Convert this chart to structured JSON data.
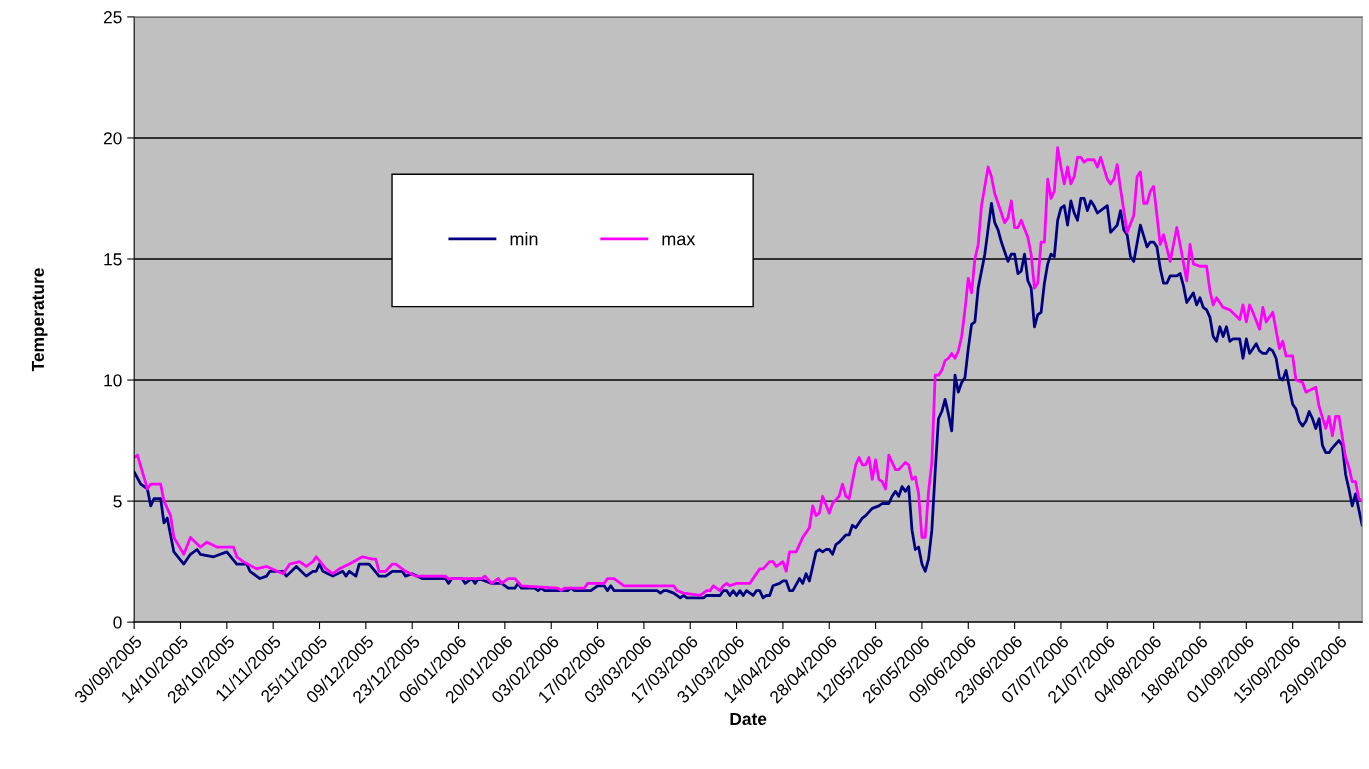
{
  "chart_data": {
    "type": "line",
    "xlabel": "Date",
    "ylabel": "Temperature",
    "xlim": [
      "2005-09-30",
      "2006-10-06"
    ],
    "ylim": [
      0,
      25
    ],
    "yticks": [
      0,
      5,
      10,
      15,
      20,
      25
    ],
    "xticks": [
      {
        "value": "2005-09-30",
        "label": "30/09/2005"
      },
      {
        "value": "2005-10-14",
        "label": "14/10/2005"
      },
      {
        "value": "2005-10-28",
        "label": "28/10/2005"
      },
      {
        "value": "2005-11-11",
        "label": "11/11/2005"
      },
      {
        "value": "2005-11-25",
        "label": "25/11/2005"
      },
      {
        "value": "2005-12-09",
        "label": "09/12/2005"
      },
      {
        "value": "2005-12-23",
        "label": "23/12/2005"
      },
      {
        "value": "2006-01-06",
        "label": "06/01/2006"
      },
      {
        "value": "2006-01-20",
        "label": "20/01/2006"
      },
      {
        "value": "2006-02-03",
        "label": "03/02/2006"
      },
      {
        "value": "2006-02-17",
        "label": "17/02/2006"
      },
      {
        "value": "2006-03-03",
        "label": "03/03/2006"
      },
      {
        "value": "2006-03-17",
        "label": "17/03/2006"
      },
      {
        "value": "2006-03-31",
        "label": "31/03/2006"
      },
      {
        "value": "2006-04-14",
        "label": "14/04/2006"
      },
      {
        "value": "2006-04-28",
        "label": "28/04/2006"
      },
      {
        "value": "2006-05-12",
        "label": "12/05/2006"
      },
      {
        "value": "2006-05-26",
        "label": "26/05/2006"
      },
      {
        "value": "2006-06-09",
        "label": "09/06/2006"
      },
      {
        "value": "2006-06-23",
        "label": "23/06/2006"
      },
      {
        "value": "2006-07-07",
        "label": "07/07/2006"
      },
      {
        "value": "2006-07-21",
        "label": "21/07/2006"
      },
      {
        "value": "2006-08-04",
        "label": "04/08/2006"
      },
      {
        "value": "2006-08-18",
        "label": "18/08/2006"
      },
      {
        "value": "2006-09-01",
        "label": "01/09/2006"
      },
      {
        "value": "2006-09-15",
        "label": "15/09/2006"
      },
      {
        "value": "2006-09-29",
        "label": "29/09/2006"
      }
    ],
    "grid": "y",
    "legend": "top left",
    "marker": "none",
    "line_style": "solid",
    "series": [
      {
        "name": "min",
        "color": "#000080",
        "x": [
          "2005-09-30",
          "2005-10-02",
          "2005-10-04",
          "2005-10-05",
          "2005-10-06",
          "2005-10-08",
          "2005-10-09",
          "2005-10-10",
          "2005-10-12",
          "2005-10-15",
          "2005-10-17",
          "2005-10-19",
          "2005-10-20",
          "2005-10-24",
          "2005-10-28",
          "2005-10-31",
          "2005-11-03",
          "2005-11-04",
          "2005-11-07",
          "2005-11-09",
          "2005-11-10",
          "2005-11-14",
          "2005-11-15",
          "2005-11-18",
          "2005-11-21",
          "2005-11-23",
          "2005-11-24",
          "2005-11-25",
          "2005-11-26",
          "2005-11-29",
          "2005-12-02",
          "2005-12-03",
          "2005-12-04",
          "2005-12-06",
          "2005-12-07",
          "2005-12-10",
          "2005-12-13",
          "2005-12-15",
          "2005-12-17",
          "2005-12-20",
          "2005-12-21",
          "2005-12-23",
          "2005-12-26",
          "2006-01-02",
          "2006-01-03",
          "2006-01-04",
          "2006-01-07",
          "2006-01-08",
          "2006-01-10",
          "2006-01-11",
          "2006-01-12",
          "2006-01-16",
          "2006-01-19",
          "2006-01-21",
          "2006-01-23",
          "2006-01-24",
          "2006-01-25",
          "2006-01-29",
          "2006-01-30",
          "2006-01-31",
          "2006-02-01",
          "2006-02-08",
          "2006-02-09",
          "2006-02-10",
          "2006-02-15",
          "2006-02-17",
          "2006-02-19",
          "2006-02-20",
          "2006-02-21",
          "2006-02-22",
          "2006-03-07",
          "2006-03-08",
          "2006-03-09",
          "2006-03-10",
          "2006-03-12",
          "2006-03-14",
          "2006-03-15",
          "2006-03-16",
          "2006-03-21",
          "2006-03-22",
          "2006-03-26",
          "2006-03-27",
          "2006-03-28",
          "2006-03-29",
          "2006-03-30",
          "2006-03-31",
          "2006-04-01",
          "2006-04-02",
          "2006-04-03",
          "2006-04-05",
          "2006-04-06",
          "2006-04-07",
          "2006-04-08",
          "2006-04-09",
          "2006-04-10",
          "2006-04-11",
          "2006-04-13",
          "2006-04-14",
          "2006-04-15",
          "2006-04-16",
          "2006-04-17",
          "2006-04-19",
          "2006-04-20",
          "2006-04-21",
          "2006-04-22",
          "2006-04-24",
          "2006-04-25",
          "2006-04-26",
          "2006-04-27",
          "2006-04-28",
          "2006-04-29",
          "2006-04-30",
          "2006-05-01",
          "2006-05-03",
          "2006-05-04",
          "2006-05-05",
          "2006-05-06",
          "2006-05-08",
          "2006-05-09",
          "2006-05-11",
          "2006-05-13",
          "2006-05-14",
          "2006-05-16",
          "2006-05-17",
          "2006-05-18",
          "2006-05-19",
          "2006-05-20",
          "2006-05-21",
          "2006-05-22",
          "2006-05-23",
          "2006-05-24",
          "2006-05-25",
          "2006-05-26",
          "2006-05-27",
          "2006-05-28",
          "2006-05-29",
          "2006-05-30",
          "2006-05-31",
          "2006-06-01",
          "2006-06-02",
          "2006-06-03",
          "2006-06-04",
          "2006-06-05",
          "2006-06-06",
          "2006-06-07",
          "2006-06-08",
          "2006-06-09",
          "2006-06-10",
          "2006-06-11",
          "2006-06-12",
          "2006-06-14",
          "2006-06-16",
          "2006-06-17",
          "2006-06-18",
          "2006-06-19",
          "2006-06-20",
          "2006-06-21",
          "2006-06-22",
          "2006-06-23",
          "2006-06-24",
          "2006-06-25",
          "2006-06-26",
          "2006-06-27",
          "2006-06-28",
          "2006-06-29",
          "2006-06-30",
          "2006-07-01",
          "2006-07-02",
          "2006-07-03",
          "2006-07-04",
          "2006-07-05",
          "2006-07-06",
          "2006-07-07",
          "2006-07-08",
          "2006-07-09",
          "2006-07-10",
          "2006-07-11",
          "2006-07-12",
          "2006-07-13",
          "2006-07-14",
          "2006-07-15",
          "2006-07-16",
          "2006-07-17",
          "2006-07-18",
          "2006-07-19",
          "2006-07-21",
          "2006-07-22",
          "2006-07-24",
          "2006-07-25",
          "2006-07-26",
          "2006-07-27",
          "2006-07-28",
          "2006-07-29",
          "2006-07-31",
          "2006-08-02",
          "2006-08-03",
          "2006-08-04",
          "2006-08-05",
          "2006-08-06",
          "2006-08-07",
          "2006-08-08",
          "2006-08-09",
          "2006-08-11",
          "2006-08-12",
          "2006-08-13",
          "2006-08-14",
          "2006-08-16",
          "2006-08-17",
          "2006-08-18",
          "2006-08-19",
          "2006-08-20",
          "2006-08-21",
          "2006-08-22",
          "2006-08-23",
          "2006-08-24",
          "2006-08-25",
          "2006-08-26",
          "2006-08-27",
          "2006-08-28",
          "2006-08-30",
          "2006-08-31",
          "2006-09-01",
          "2006-09-02",
          "2006-09-04",
          "2006-09-05",
          "2006-09-06",
          "2006-09-07",
          "2006-09-08",
          "2006-09-09",
          "2006-09-10",
          "2006-09-11",
          "2006-09-12",
          "2006-09-13",
          "2006-09-15",
          "2006-09-16",
          "2006-09-17",
          "2006-09-18",
          "2006-09-19",
          "2006-09-20",
          "2006-09-21",
          "2006-09-22",
          "2006-09-23",
          "2006-09-24",
          "2006-09-25",
          "2006-09-26",
          "2006-09-27",
          "2006-09-29",
          "2006-09-30",
          "2006-10-01",
          "2006-10-02",
          "2006-10-03",
          "2006-10-04",
          "2006-10-06"
        ],
        "values": [
          6.2,
          5.7,
          5.5,
          4.8,
          5.1,
          5.1,
          4.1,
          4.3,
          2.9,
          2.4,
          2.8,
          3.0,
          2.8,
          2.7,
          2.9,
          2.4,
          2.4,
          2.1,
          1.8,
          1.9,
          2.1,
          2.1,
          1.9,
          2.3,
          1.9,
          2.1,
          2.1,
          2.4,
          2.1,
          1.9,
          2.1,
          1.9,
          2.1,
          1.9,
          2.4,
          2.4,
          1.9,
          1.9,
          2.1,
          2.1,
          1.9,
          2.0,
          1.8,
          1.8,
          1.6,
          1.8,
          1.8,
          1.6,
          1.8,
          1.6,
          1.8,
          1.6,
          1.6,
          1.4,
          1.4,
          1.6,
          1.4,
          1.4,
          1.3,
          1.4,
          1.3,
          1.3,
          1.4,
          1.3,
          1.3,
          1.5,
          1.5,
          1.3,
          1.5,
          1.3,
          1.3,
          1.2,
          1.3,
          1.3,
          1.2,
          1.0,
          1.1,
          1.0,
          1.0,
          1.1,
          1.1,
          1.3,
          1.3,
          1.1,
          1.3,
          1.1,
          1.3,
          1.1,
          1.3,
          1.1,
          1.3,
          1.3,
          1.0,
          1.1,
          1.1,
          1.5,
          1.6,
          1.7,
          1.7,
          1.3,
          1.3,
          1.8,
          1.6,
          2.0,
          1.7,
          2.9,
          3.0,
          2.9,
          3.0,
          3.0,
          2.8,
          3.2,
          3.3,
          3.6,
          3.6,
          4.0,
          3.9,
          4.3,
          4.4,
          4.7,
          4.8,
          4.9,
          4.9,
          5.2,
          5.4,
          5.2,
          5.6,
          5.4,
          5.6,
          3.8,
          3.0,
          3.1,
          2.4,
          2.1,
          2.6,
          3.8,
          6.2,
          8.4,
          8.7,
          9.2,
          8.6,
          7.9,
          10.2,
          9.5,
          9.9,
          10.1,
          11.3,
          12.3,
          12.4,
          13.8,
          15.2,
          17.3,
          16.5,
          16.2,
          15.7,
          15.3,
          14.9,
          15.2,
          15.2,
          14.4,
          14.5,
          15.2,
          14.1,
          13.8,
          12.2,
          12.7,
          12.8,
          14.0,
          14.8,
          15.2,
          15.1,
          16.6,
          17.1,
          17.2,
          16.4,
          17.4,
          16.9,
          16.6,
          17.5,
          17.5,
          17.0,
          17.4,
          17.2,
          16.9,
          17.0,
          17.2,
          16.1,
          16.4,
          17.0,
          16.2,
          16.0,
          15.1,
          14.9,
          16.4,
          15.5,
          15.7,
          15.7,
          15.5,
          14.6,
          14.0,
          14.0,
          14.3,
          14.3,
          14.4,
          13.9,
          13.2,
          13.6,
          13.1,
          13.4,
          13.0,
          12.9,
          12.6,
          11.8,
          11.6,
          12.2,
          11.8,
          12.2,
          11.6,
          11.7,
          11.7,
          10.9,
          11.7,
          11.1,
          11.5,
          11.2,
          11.1,
          11.1,
          11.3,
          11.2,
          10.9,
          10.1,
          10.0,
          10.4,
          9.0,
          8.8,
          8.3,
          8.1,
          8.3,
          8.7,
          8.4,
          8.0,
          8.4,
          7.3,
          7.0,
          7.0,
          7.2,
          7.5,
          7.3,
          6.1,
          5.5,
          4.8,
          5.3,
          4.0
        ]
      },
      {
        "name": "max",
        "color": "#ff00ff",
        "x": [
          "2005-09-30",
          "2005-10-01",
          "2005-10-04",
          "2005-10-05",
          "2005-10-08",
          "2005-10-09",
          "2005-10-11",
          "2005-10-12",
          "2005-10-15",
          "2005-10-17",
          "2005-10-20",
          "2005-10-22",
          "2005-10-25",
          "2005-10-30",
          "2005-10-31",
          "2005-11-02",
          "2005-11-06",
          "2005-11-09",
          "2005-11-14",
          "2005-11-16",
          "2005-11-19",
          "2005-11-21",
          "2005-11-23",
          "2005-11-24",
          "2005-11-27",
          "2005-11-29",
          "2005-12-01",
          "2005-12-04",
          "2005-12-08",
          "2005-12-11",
          "2005-12-12",
          "2005-12-13",
          "2005-12-15",
          "2005-12-17",
          "2005-12-18",
          "2005-12-20",
          "2005-12-21",
          "2005-12-24",
          "2006-01-02",
          "2006-01-03",
          "2006-01-13",
          "2006-01-14",
          "2006-01-16",
          "2006-01-18",
          "2006-01-19",
          "2006-01-21",
          "2006-01-23",
          "2006-01-25",
          "2006-02-05",
          "2006-02-06",
          "2006-02-07",
          "2006-02-13",
          "2006-02-14",
          "2006-02-19",
          "2006-02-20",
          "2006-02-22",
          "2006-02-25",
          "2006-03-12",
          "2006-03-13",
          "2006-03-15",
          "2006-03-20",
          "2006-03-22",
          "2006-03-23",
          "2006-03-24",
          "2006-03-26",
          "2006-03-27",
          "2006-03-28",
          "2006-03-29",
          "2006-03-31",
          "2006-04-04",
          "2006-04-07",
          "2006-04-08",
          "2006-04-10",
          "2006-04-11",
          "2006-04-12",
          "2006-04-14",
          "2006-04-15",
          "2006-04-16",
          "2006-04-18",
          "2006-04-20",
          "2006-04-22",
          "2006-04-23",
          "2006-04-24",
          "2006-04-25",
          "2006-04-26",
          "2006-04-28",
          "2006-04-29",
          "2006-05-01",
          "2006-05-02",
          "2006-05-03",
          "2006-05-04",
          "2006-05-06",
          "2006-05-07",
          "2006-05-08",
          "2006-05-09",
          "2006-05-10",
          "2006-05-11",
          "2006-05-12",
          "2006-05-13",
          "2006-05-14",
          "2006-05-15",
          "2006-05-16",
          "2006-05-18",
          "2006-05-19",
          "2006-05-21",
          "2006-05-22",
          "2006-05-23",
          "2006-05-24",
          "2006-05-25",
          "2006-05-26",
          "2006-05-27",
          "2006-05-28",
          "2006-05-29",
          "2006-05-30",
          "2006-05-31",
          "2006-06-01",
          "2006-06-02",
          "2006-06-03",
          "2006-06-04",
          "2006-06-05",
          "2006-06-06",
          "2006-06-07",
          "2006-06-08",
          "2006-06-09",
          "2006-06-10",
          "2006-06-11",
          "2006-06-12",
          "2006-06-13",
          "2006-06-15",
          "2006-06-16",
          "2006-06-17",
          "2006-06-18",
          "2006-06-20",
          "2006-06-21",
          "2006-06-22",
          "2006-06-23",
          "2006-06-24",
          "2006-06-25",
          "2006-06-27",
          "2006-06-28",
          "2006-06-29",
          "2006-06-30",
          "2006-07-01",
          "2006-07-02",
          "2006-07-03",
          "2006-07-04",
          "2006-07-05",
          "2006-07-06",
          "2006-07-07",
          "2006-07-08",
          "2006-07-09",
          "2006-07-10",
          "2006-07-11",
          "2006-07-12",
          "2006-07-13",
          "2006-07-14",
          "2006-07-15",
          "2006-07-17",
          "2006-07-18",
          "2006-07-19",
          "2006-07-21",
          "2006-07-22",
          "2006-07-23",
          "2006-07-24",
          "2006-07-25",
          "2006-07-27",
          "2006-07-29",
          "2006-07-30",
          "2006-07-31",
          "2006-08-01",
          "2006-08-02",
          "2006-08-03",
          "2006-08-04",
          "2006-08-06",
          "2006-08-07",
          "2006-08-09",
          "2006-08-11",
          "2006-08-12",
          "2006-08-14",
          "2006-08-15",
          "2006-08-16",
          "2006-08-18",
          "2006-08-20",
          "2006-08-21",
          "2006-08-22",
          "2006-08-23",
          "2006-08-25",
          "2006-08-27",
          "2006-08-30",
          "2006-08-31",
          "2006-09-01",
          "2006-09-02",
          "2006-09-03",
          "2006-09-05",
          "2006-09-06",
          "2006-09-07",
          "2006-09-09",
          "2006-09-11",
          "2006-09-12",
          "2006-09-13",
          "2006-09-15",
          "2006-09-16",
          "2006-09-18",
          "2006-09-19",
          "2006-09-22",
          "2006-09-23",
          "2006-09-25",
          "2006-09-26",
          "2006-09-27",
          "2006-09-28",
          "2006-09-29",
          "2006-10-01",
          "2006-10-02",
          "2006-10-03",
          "2006-10-04",
          "2006-10-05",
          "2006-10-06"
        ],
        "values": [
          6.8,
          6.9,
          5.5,
          5.7,
          5.7,
          5.0,
          4.4,
          3.5,
          2.8,
          3.5,
          3.1,
          3.3,
          3.1,
          3.1,
          2.7,
          2.5,
          2.2,
          2.3,
          2.0,
          2.4,
          2.5,
          2.3,
          2.5,
          2.7,
          2.2,
          2.0,
          2.2,
          2.4,
          2.7,
          2.6,
          2.6,
          2.1,
          2.1,
          2.4,
          2.4,
          2.2,
          2.1,
          1.9,
          1.9,
          1.8,
          1.8,
          1.9,
          1.6,
          1.8,
          1.6,
          1.8,
          1.8,
          1.5,
          1.4,
          1.3,
          1.4,
          1.4,
          1.6,
          1.6,
          1.8,
          1.8,
          1.5,
          1.5,
          1.3,
          1.2,
          1.1,
          1.3,
          1.3,
          1.5,
          1.3,
          1.5,
          1.6,
          1.5,
          1.6,
          1.6,
          2.2,
          2.2,
          2.5,
          2.5,
          2.3,
          2.5,
          2.1,
          2.9,
          2.9,
          3.5,
          3.9,
          4.8,
          4.4,
          4.5,
          5.2,
          4.5,
          4.9,
          5.2,
          5.7,
          5.2,
          5.1,
          6.5,
          6.8,
          6.5,
          6.5,
          6.8,
          5.9,
          6.7,
          5.9,
          5.8,
          5.5,
          6.9,
          6.3,
          6.3,
          6.6,
          6.5,
          5.9,
          6.0,
          5.3,
          3.5,
          3.5,
          5.4,
          6.6,
          10.2,
          10.2,
          10.4,
          10.8,
          10.9,
          11.1,
          10.9,
          11.2,
          11.8,
          12.9,
          14.2,
          13.6,
          15.0,
          15.6,
          17.2,
          18.8,
          18.4,
          17.7,
          17.3,
          16.5,
          16.7,
          17.4,
          16.3,
          16.3,
          16.6,
          15.9,
          15.2,
          13.8,
          14.0,
          15.7,
          15.7,
          18.3,
          17.5,
          17.8,
          19.6,
          18.8,
          18.1,
          18.8,
          18.1,
          18.4,
          19.2,
          19.2,
          19.0,
          19.1,
          19.1,
          18.8,
          19.2,
          18.3,
          18.1,
          18.3,
          18.9,
          17.9,
          16.1,
          16.8,
          18.4,
          18.6,
          17.3,
          17.3,
          17.8,
          18.0,
          15.6,
          16.0,
          14.9,
          16.3,
          15.6,
          14.1,
          15.6,
          14.8,
          14.7,
          14.7,
          13.7,
          13.1,
          13.4,
          13.0,
          12.9,
          12.5,
          13.1,
          12.4,
          13.1,
          12.8,
          12.1,
          13.0,
          12.4,
          12.8,
          11.3,
          11.6,
          11.0,
          11.0,
          10.0,
          9.9,
          9.5,
          9.7,
          8.9,
          8.0,
          8.5,
          7.7,
          8.5,
          8.5,
          6.8,
          6.4,
          5.8,
          5.8,
          5.1,
          5.0
        ]
      }
    ]
  }
}
